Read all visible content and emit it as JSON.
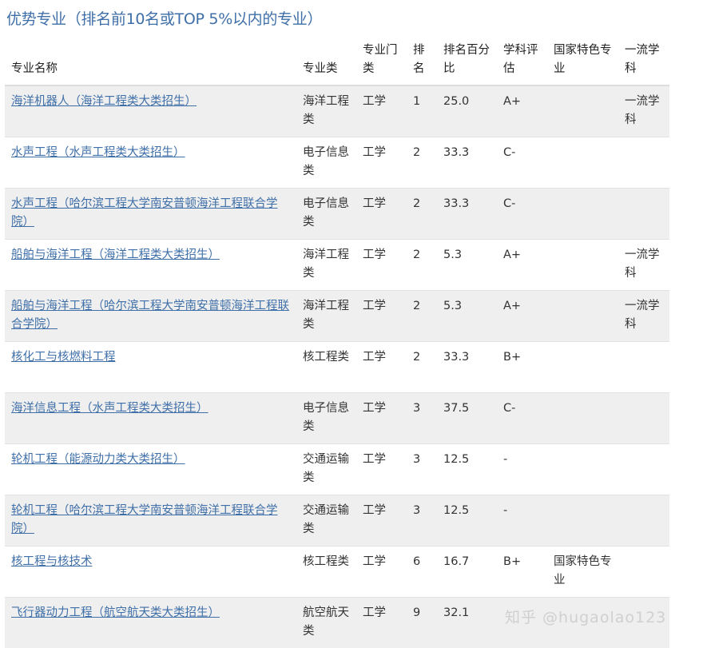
{
  "title": "优势专业（排名前10名或TOP 5%以内的专业）",
  "headers": [
    "专业名称",
    "专业类",
    "专业门类",
    "排名",
    "排名百分比",
    "学科评估",
    "国家特色专业",
    "一流学科"
  ],
  "rows": [
    [
      "海洋机器人（海洋工程类大类招生）",
      "海洋工程类",
      "工学",
      "1",
      "25.0",
      "A+",
      "",
      "一流学科"
    ],
    [
      "水声工程（水声工程类大类招生）",
      "电子信息类",
      "工学",
      "2",
      "33.3",
      "C-",
      "",
      ""
    ],
    [
      "水声工程（哈尔滨工程大学南安普顿海洋工程联合学院）",
      "电子信息类",
      "工学",
      "2",
      "33.3",
      "C-",
      "",
      ""
    ],
    [
      "船舶与海洋工程（海洋工程类大类招生）",
      "海洋工程类",
      "工学",
      "2",
      "5.3",
      "A+",
      "",
      "一流学科"
    ],
    [
      "船舶与海洋工程（哈尔滨工程大学南安普顿海洋工程联合学院）",
      "海洋工程类",
      "工学",
      "2",
      "5.3",
      "A+",
      "",
      "一流学科"
    ],
    [
      "核化工与核燃料工程",
      "核工程类",
      "工学",
      "2",
      "33.3",
      "B+",
      "",
      ""
    ],
    [
      "海洋信息工程（水声工程类大类招生）",
      "电子信息类",
      "工学",
      "3",
      "37.5",
      "C-",
      "",
      ""
    ],
    [
      "轮机工程（能源动力类大类招生）",
      "交通运输类",
      "工学",
      "3",
      "12.5",
      "-",
      "",
      ""
    ],
    [
      "轮机工程（哈尔滨工程大学南安普顿海洋工程联合学院）",
      "交通运输类",
      "工学",
      "3",
      "12.5",
      "-",
      "",
      ""
    ],
    [
      "核工程与核技术",
      "核工程类",
      "工学",
      "6",
      "16.7",
      "B+",
      "国家特色专业",
      ""
    ],
    [
      "飞行器动力工程（航空航天类大类招生）",
      "航空航天类",
      "工学",
      "9",
      "32.1",
      "",
      "",
      ""
    ]
  ],
  "watermark": "知乎 @hugaolao123",
  "colors": {
    "link": "#3f6fa8",
    "stripe": "#efefef"
  }
}
